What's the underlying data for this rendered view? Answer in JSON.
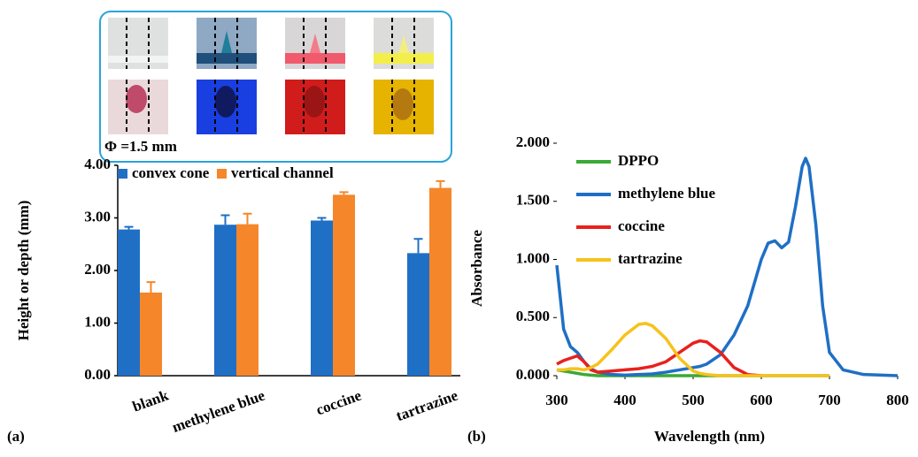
{
  "chart_data": [
    {
      "type": "bar",
      "panel_label": "(a)",
      "annotation": "Φ =1.5 mm",
      "ylabel": "Height or depth (mm)",
      "categories": [
        "blank",
        "methylene blue",
        "coccine",
        "tartrazine"
      ],
      "series": [
        {
          "name": "convex cone",
          "color": "#1f6fc5",
          "values": [
            2.78,
            2.87,
            2.95,
            2.33
          ],
          "errors": [
            0.05,
            0.18,
            0.05,
            0.27
          ]
        },
        {
          "name": "vertical channel",
          "color": "#f5862a",
          "values": [
            1.58,
            2.88,
            3.44,
            3.57
          ],
          "errors": [
            0.2,
            0.2,
            0.05,
            0.13
          ]
        }
      ],
      "ylim": [
        0,
        4
      ],
      "yticks": [
        {
          "value": 0,
          "label": "0.00"
        },
        {
          "value": 1,
          "label": "1.00"
        },
        {
          "value": 2,
          "label": "2.00"
        },
        {
          "value": 3,
          "label": "3.00"
        },
        {
          "value": 4,
          "label": "4.00"
        }
      ]
    },
    {
      "type": "line",
      "panel_label": "(b)",
      "xlabel": "Wavelength (nm)",
      "ylabel": "Absorbance",
      "x": [
        300,
        310,
        320,
        330,
        340,
        350,
        360,
        380,
        400,
        420,
        430,
        440,
        460,
        480,
        500,
        510,
        520,
        540,
        560,
        580,
        600,
        610,
        620,
        630,
        640,
        650,
        660,
        665,
        670,
        680,
        690,
        700,
        720,
        750,
        800
      ],
      "series": [
        {
          "name": "DPPO",
          "color": "#3aaa35",
          "values": [
            0.05,
            0.04,
            0.03,
            0.02,
            0.01,
            0.005,
            0,
            0,
            0,
            0,
            0,
            0,
            0,
            0,
            0,
            0,
            0,
            0,
            0,
            0,
            0,
            0,
            0,
            0,
            0,
            0,
            0,
            0,
            0,
            0,
            0,
            0,
            null,
            null,
            null
          ]
        },
        {
          "name": "methylene blue",
          "color": "#1f6fc5",
          "values": [
            0.95,
            0.4,
            0.25,
            0.2,
            0.12,
            0.06,
            0.03,
            0.01,
            0.005,
            0.01,
            0.012,
            0.015,
            0.03,
            0.05,
            0.07,
            0.08,
            0.1,
            0.18,
            0.35,
            0.6,
            1.0,
            1.14,
            1.16,
            1.1,
            1.15,
            1.45,
            1.8,
            1.87,
            1.8,
            1.3,
            0.6,
            0.2,
            0.05,
            0.01,
            0
          ]
        },
        {
          "name": "coccine",
          "color": "#e8211d",
          "values": [
            0.1,
            0.13,
            0.15,
            0.17,
            0.12,
            0.05,
            0.03,
            0.04,
            0.05,
            0.06,
            0.07,
            0.08,
            0.12,
            0.2,
            0.28,
            0.3,
            0.29,
            0.2,
            0.07,
            0.01,
            0,
            null,
            null,
            null,
            null,
            null,
            null,
            null,
            null,
            null,
            null,
            null,
            null,
            null,
            null
          ]
        },
        {
          "name": "tartrazine",
          "color": "#f7c21b",
          "values": [
            0.05,
            0.05,
            0.06,
            0.06,
            0.05,
            0.07,
            0.1,
            0.22,
            0.35,
            0.44,
            0.45,
            0.43,
            0.32,
            0.15,
            0.04,
            0.02,
            0.01,
            0,
            0,
            0,
            0,
            0,
            0,
            0,
            0,
            0,
            0,
            0,
            0,
            0,
            0,
            0,
            null,
            null,
            null
          ]
        }
      ],
      "xlim": [
        300,
        800
      ],
      "xticks": [
        300,
        400,
        500,
        600,
        700,
        800
      ],
      "ylim": [
        0,
        2
      ],
      "yticks": [
        {
          "value": 0,
          "label": "0.000"
        },
        {
          "value": 0.5,
          "label": "0.500"
        },
        {
          "value": 1,
          "label": "1.000"
        },
        {
          "value": 1.5,
          "label": "1.500"
        },
        {
          "value": 2,
          "label": "2.000"
        }
      ]
    }
  ]
}
